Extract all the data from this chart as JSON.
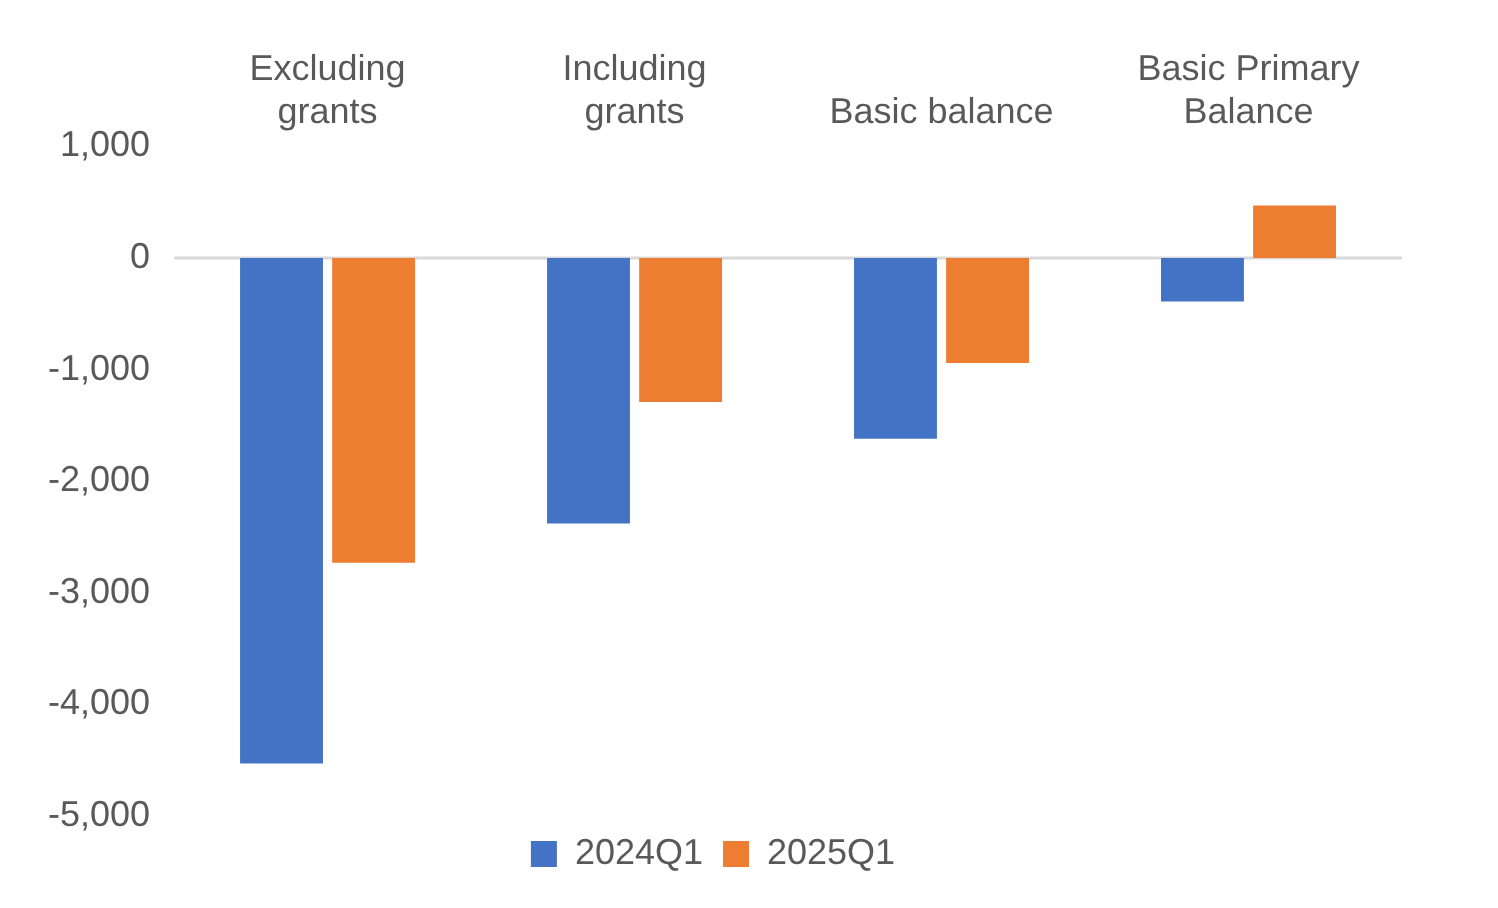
{
  "chart_data": {
    "type": "bar",
    "categories": [
      "Excluding grants",
      "Including grants",
      "Basic balance",
      "Basic Primary Balance"
    ],
    "series": [
      {
        "name": "2024Q1",
        "color": "#4472c4",
        "values": [
          -4530,
          -2380,
          -1620,
          -390
        ]
      },
      {
        "name": "2025Q1",
        "color": "#ed7d31",
        "values": [
          -2730,
          -1290,
          -940,
          470
        ]
      }
    ],
    "ylim": [
      -5000,
      1000
    ],
    "yticks": [
      {
        "value": -5000,
        "label": "-5,000"
      },
      {
        "value": -4000,
        "label": "-4,000"
      },
      {
        "value": -3000,
        "label": "-3,000"
      },
      {
        "value": -2000,
        "label": "-2,000"
      },
      {
        "value": -1000,
        "label": "-1,000"
      },
      0,
      {
        "value": 1000,
        "label": "1,000"
      }
    ],
    "grid": false,
    "legend": "bottom",
    "ref_lines": [
      {
        "axis": "y",
        "value": 0,
        "color": "#d9d9d9"
      }
    ]
  }
}
